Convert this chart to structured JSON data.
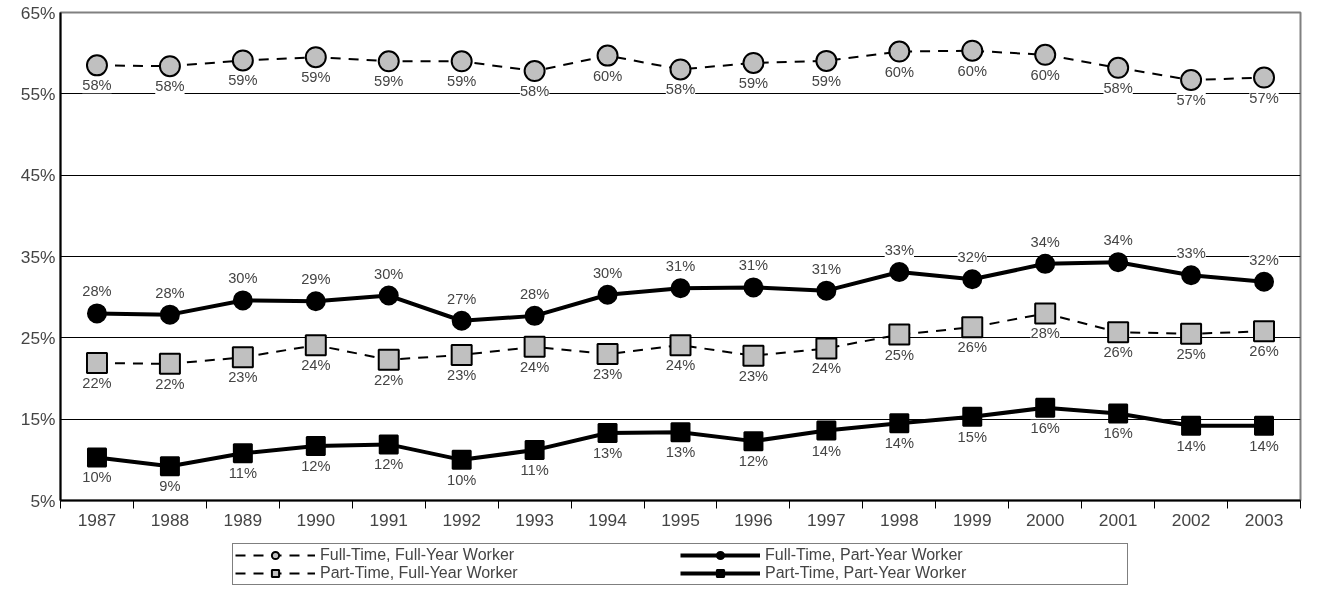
{
  "chart_data": {
    "type": "line",
    "categories": [
      "1987",
      "1988",
      "1989",
      "1990",
      "1991",
      "1992",
      "1993",
      "1994",
      "1995",
      "1996",
      "1997",
      "1998",
      "1999",
      "2000",
      "2001",
      "2002",
      "2003"
    ],
    "series": [
      {
        "name": "Full-Time, Full-Year Worker",
        "color": "#c0c0c0",
        "marker": "circle",
        "line_style": "dashed",
        "values": [
          58.5,
          58.4,
          59.1,
          59.5,
          59.0,
          59.0,
          57.8,
          59.7,
          58.0,
          58.8,
          59.05,
          60.2,
          60.3,
          59.8,
          58.2,
          56.7,
          57.0
        ],
        "value_labels": [
          "58%",
          "58%",
          "59%",
          "59%",
          "59%",
          "59%",
          "58%",
          "60%",
          "58%",
          "59%",
          "59%",
          "60%",
          "60%",
          "60%",
          "58%",
          "57%",
          "57%"
        ]
      },
      {
        "name": "Full-Time, Part-Year Worker",
        "color": "#000000",
        "marker": "circle",
        "line_style": "solid",
        "values": [
          28.0,
          27.85,
          29.6,
          29.5,
          30.2,
          27.1,
          27.7,
          30.3,
          31.1,
          31.2,
          30.8,
          33.1,
          32.2,
          34.1,
          34.3,
          32.7,
          31.9
        ],
        "value_labels": [
          "28%",
          "28%",
          "30%",
          "29%",
          "30%",
          "27%",
          "28%",
          "30%",
          "31%",
          "31%",
          "31%",
          "33%",
          "32%",
          "34%",
          "34%",
          "33%",
          "32%"
        ]
      },
      {
        "name": "Part-Time, Full-Year Worker",
        "color": "#c0c0c0",
        "marker": "square",
        "line_style": "dashed",
        "values": [
          21.9,
          21.8,
          22.6,
          24.1,
          22.3,
          22.9,
          23.9,
          23.0,
          24.1,
          22.8,
          23.7,
          25.4,
          26.3,
          28.0,
          25.7,
          25.5,
          25.8
        ],
        "value_labels": [
          "22%",
          "22%",
          "23%",
          "24%",
          "22%",
          "23%",
          "24%",
          "23%",
          "24%",
          "23%",
          "24%",
          "25%",
          "26%",
          "28%",
          "26%",
          "25%",
          "26%"
        ]
      },
      {
        "name": "Part-Time, Part-Year Worker",
        "color": "#000000",
        "marker": "square",
        "line_style": "solid",
        "values": [
          10.3,
          9.2,
          10.8,
          11.7,
          11.9,
          10.0,
          11.2,
          13.3,
          13.4,
          12.3,
          13.6,
          14.5,
          15.3,
          16.4,
          15.7,
          14.2,
          14.2
        ],
        "value_labels": [
          "10%",
          "9%",
          "11%",
          "12%",
          "12%",
          "10%",
          "11%",
          "13%",
          "13%",
          "12%",
          "14%",
          "14%",
          "15%",
          "16%",
          "16%",
          "14%",
          "14%"
        ]
      }
    ],
    "ylim": [
      5,
      65
    ],
    "yticks": [
      {
        "value": 5,
        "label": "5%"
      },
      {
        "value": 15,
        "label": "15%"
      },
      {
        "value": 25,
        "label": "25%"
      },
      {
        "value": 35,
        "label": "35%"
      },
      {
        "value": 45,
        "label": "45%"
      },
      {
        "value": 55,
        "label": "55%"
      },
      {
        "value": 65,
        "label": "65%"
      }
    ],
    "grid": "y",
    "legend": "bottom"
  }
}
